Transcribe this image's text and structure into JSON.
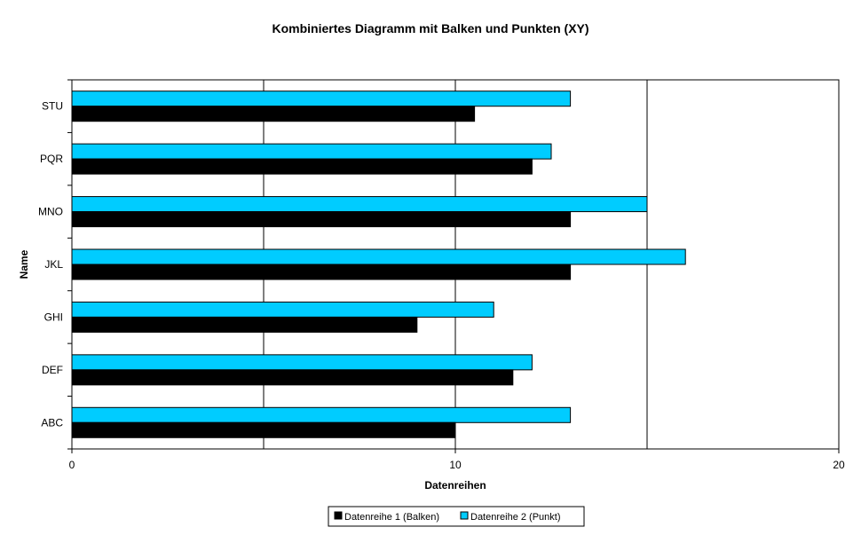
{
  "chart_data": {
    "type": "bar",
    "orientation": "horizontal",
    "title": "Kombiniertes Diagramm mit Balken und Punkten (XY)",
    "xlabel": "Datenreihen",
    "ylabel": "Name",
    "xlim": [
      0,
      20
    ],
    "x_ticks": [
      "0",
      "10",
      "20"
    ],
    "vertical_gridlines_at": [
      5,
      10,
      15
    ],
    "categories": [
      "ABC",
      "DEF",
      "GHI",
      "JKL",
      "MNO",
      "PQR",
      "STU"
    ],
    "series": [
      {
        "name": "Datenreihe 1 (Balken)",
        "color": "#000000",
        "values": [
          10,
          11.5,
          9,
          13,
          13,
          12,
          10.5
        ]
      },
      {
        "name": "Datenreihe 2 (Punkt)",
        "color": "#00CCFF",
        "values": [
          13,
          12,
          11,
          16,
          15,
          12.5,
          13
        ]
      }
    ],
    "legend_position": "bottom",
    "grid": true
  }
}
